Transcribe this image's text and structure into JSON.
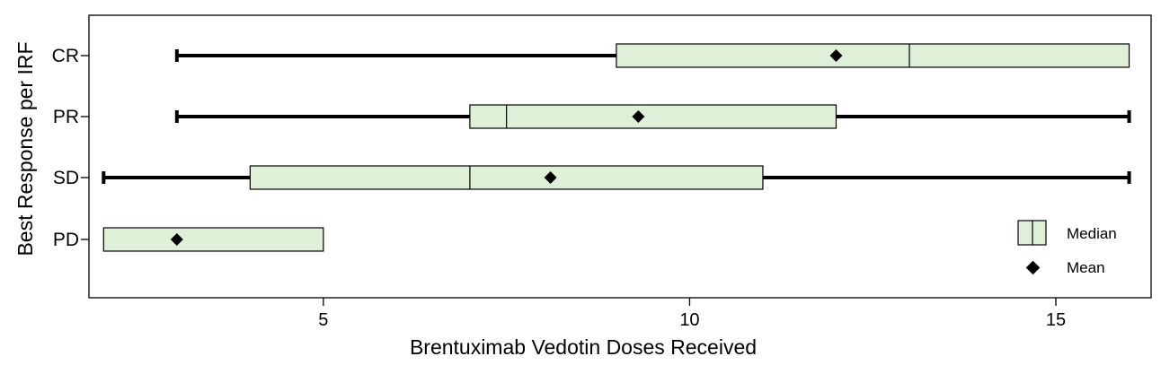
{
  "chart_data": {
    "type": "boxplot",
    "orientation": "horizontal",
    "xlabel": "Brentuximab Vedotin Doses Received",
    "ylabel": "Best Response per IRF",
    "xlim": [
      1.8,
      16.3
    ],
    "xticks": [
      5,
      10,
      15
    ],
    "categories": [
      "CR",
      "PR",
      "SD",
      "PD"
    ],
    "boxes": [
      {
        "category": "CR",
        "whisker_low": 3,
        "q1": 9,
        "median": 13,
        "q3": 16,
        "whisker_high": 16,
        "mean": 12
      },
      {
        "category": "PR",
        "whisker_low": 3,
        "q1": 7,
        "median": 7.5,
        "q3": 12,
        "whisker_high": 16,
        "mean": 9.3
      },
      {
        "category": "SD",
        "whisker_low": 2,
        "q1": 4,
        "median": 7,
        "q3": 11,
        "whisker_high": 16,
        "mean": 8.1
      },
      {
        "category": "PD",
        "whisker_low": 2,
        "q1": 2,
        "median": 2,
        "q3": 5,
        "whisker_high": 5,
        "mean": 3
      }
    ],
    "legend": {
      "position": "bottom-right",
      "median_label": "Median",
      "mean_label": "Mean"
    },
    "colors": {
      "box_fill": "#dff0d8",
      "box_stroke": "#000000",
      "whisker": "#000000",
      "mean_marker": "#000000"
    },
    "grid": false
  }
}
